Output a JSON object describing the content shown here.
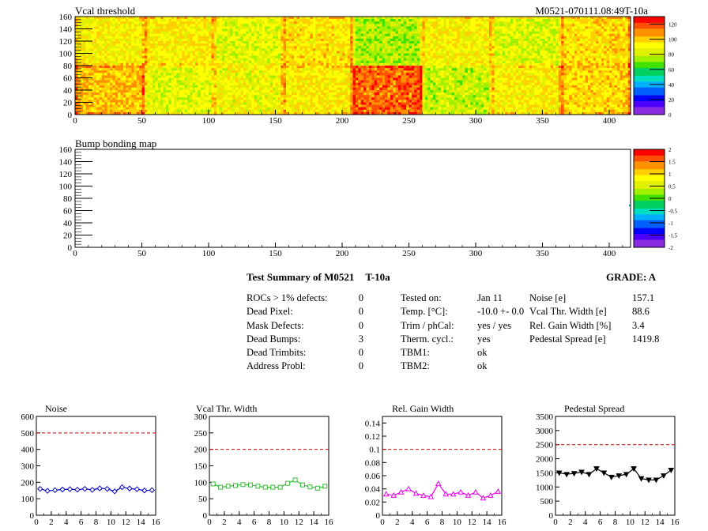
{
  "page": {
    "module_id": "M0521-070111.08:49T-10a"
  },
  "maps": [
    {
      "title": "Vcal threshold",
      "x_ticks": [
        "0",
        "50",
        "100",
        "150",
        "200",
        "250",
        "300",
        "350",
        "400"
      ],
      "y_ticks": [
        "0",
        "20",
        "40",
        "60",
        "80",
        "100",
        "120",
        "140",
        "160"
      ],
      "z_ticks": [
        "0",
        "20",
        "40",
        "60",
        "80",
        "100",
        "120"
      ],
      "z_range": [
        0,
        130
      ]
    },
    {
      "title": "Bump bonding map",
      "x_ticks": [
        "0",
        "50",
        "100",
        "150",
        "200",
        "250",
        "300",
        "350",
        "400"
      ],
      "y_ticks": [
        "0",
        "20",
        "40",
        "60",
        "80",
        "100",
        "120",
        "140",
        "160"
      ],
      "z_ticks": [
        "-2",
        "-1.5",
        "-1",
        "-0.5",
        "0",
        "0.5",
        "1",
        "1.5",
        "2"
      ],
      "z_range": [
        -2,
        2
      ]
    }
  ],
  "colors": {
    "palette": [
      "#8a2be2",
      "#4b00ff",
      "#0000ff",
      "#0060ff",
      "#00b0ff",
      "#00e0c0",
      "#00d060",
      "#40e000",
      "#a0f000",
      "#e0f000",
      "#ffff00",
      "#ffd000",
      "#ff9000",
      "#ff5000",
      "#ff0000"
    ],
    "limit_line": "#cc0000",
    "noise_series": "#0000cc",
    "vcal_series": "#33bb33",
    "gain_series": "#ee00ee",
    "pedestal_series": "#000000"
  },
  "summary": {
    "title": "Test Summary of M0521",
    "title_suffix": "T-10a",
    "grade": "GRADE:  A",
    "defects": [
      {
        "label": "ROCs > 1% defects:",
        "value": "0"
      },
      {
        "label": "Dead Pixel:",
        "value": "0"
      },
      {
        "label": "Mask Defects:",
        "value": "0"
      },
      {
        "label": "Dead Bumps:",
        "value": "3"
      },
      {
        "label": "Dead Trimbits:",
        "value": "0"
      },
      {
        "label": "Address Probl:",
        "value": "0"
      }
    ],
    "conditions": [
      {
        "label": "Tested on:",
        "value": "Jan 11"
      },
      {
        "label": "Temp. [°C]:",
        "value": "-10.0 +- 0.0"
      },
      {
        "label": "Trim / phCal:",
        "value": "yes / yes"
      },
      {
        "label": "Therm. cycl.:",
        "value": "yes"
      },
      {
        "label": "TBM1:",
        "value": "ok"
      },
      {
        "label": "TBM2:",
        "value": "ok"
      }
    ],
    "results": [
      {
        "label": "Noise [e]",
        "value": "157.1"
      },
      {
        "label": "Vcal Thr. Width [e]",
        "value": "88.6"
      },
      {
        "label": "Rel. Gain Width [%]",
        "value": "3.4"
      },
      {
        "label": "Pedestal Spread [e]",
        "value": "1419.8"
      }
    ]
  },
  "chart_data": [
    {
      "type": "line",
      "title": "Noise",
      "x": [
        0,
        1,
        2,
        3,
        4,
        5,
        6,
        7,
        8,
        9,
        10,
        11,
        12,
        13,
        14,
        15
      ],
      "values": [
        160,
        148,
        152,
        156,
        158,
        155,
        160,
        154,
        163,
        160,
        145,
        170,
        162,
        158,
        150,
        152
      ],
      "ylim": [
        0,
        600
      ],
      "xlim": [
        0,
        16
      ],
      "limit": 500,
      "y_ticks": [
        "0",
        "100",
        "200",
        "300",
        "400",
        "500",
        "600"
      ],
      "x_ticks": [
        "0",
        "2",
        "4",
        "6",
        "8",
        "10",
        "12",
        "14",
        "16"
      ],
      "marker": "diamond"
    },
    {
      "type": "line",
      "title": "Vcal Thr. Width",
      "x": [
        0,
        1,
        2,
        3,
        4,
        5,
        6,
        7,
        8,
        9,
        10,
        11,
        12,
        13,
        14,
        15
      ],
      "values": [
        95,
        85,
        88,
        90,
        93,
        92,
        88,
        85,
        85,
        85,
        97,
        107,
        92,
        86,
        82,
        88
      ],
      "ylim": [
        0,
        300
      ],
      "xlim": [
        0,
        16
      ],
      "limit": 200,
      "y_ticks": [
        "0",
        "50",
        "100",
        "150",
        "200",
        "250",
        "300"
      ],
      "x_ticks": [
        "0",
        "2",
        "4",
        "6",
        "8",
        "10",
        "12",
        "14",
        "16"
      ],
      "marker": "square"
    },
    {
      "type": "line",
      "title": "Rel. Gain Width",
      "x": [
        0,
        1,
        2,
        3,
        4,
        5,
        6,
        7,
        8,
        9,
        10,
        11,
        12,
        13,
        14,
        15
      ],
      "values": [
        0.032,
        0.03,
        0.035,
        0.04,
        0.033,
        0.03,
        0.028,
        0.048,
        0.032,
        0.032,
        0.035,
        0.03,
        0.035,
        0.026,
        0.03,
        0.036
      ],
      "ylim": [
        0,
        0.15
      ],
      "xlim": [
        0,
        16
      ],
      "limit": 0.1,
      "y_ticks": [
        "0",
        "0.02",
        "0.04",
        "0.06",
        "0.08",
        "0.1",
        "0.12",
        "0.14"
      ],
      "x_ticks": [
        "0",
        "2",
        "4",
        "6",
        "8",
        "10",
        "12",
        "14",
        "16"
      ],
      "marker": "triangle"
    },
    {
      "type": "line",
      "title": "Pedestal Spread",
      "x": [
        0,
        1,
        2,
        3,
        4,
        5,
        6,
        7,
        8,
        9,
        10,
        11,
        12,
        13,
        14,
        15
      ],
      "values": [
        1500,
        1450,
        1480,
        1530,
        1450,
        1650,
        1500,
        1350,
        1400,
        1450,
        1650,
        1300,
        1250,
        1250,
        1400,
        1600
      ],
      "ylim": [
        0,
        3500
      ],
      "xlim": [
        0,
        16
      ],
      "limit": 2500,
      "y_ticks": [
        "0",
        "500",
        "1000",
        "1500",
        "2000",
        "2500",
        "3000",
        "3500"
      ],
      "x_ticks": [
        "0",
        "2",
        "4",
        "6",
        "8",
        "10",
        "12",
        "14",
        "16"
      ],
      "marker": "triangle-down"
    }
  ]
}
